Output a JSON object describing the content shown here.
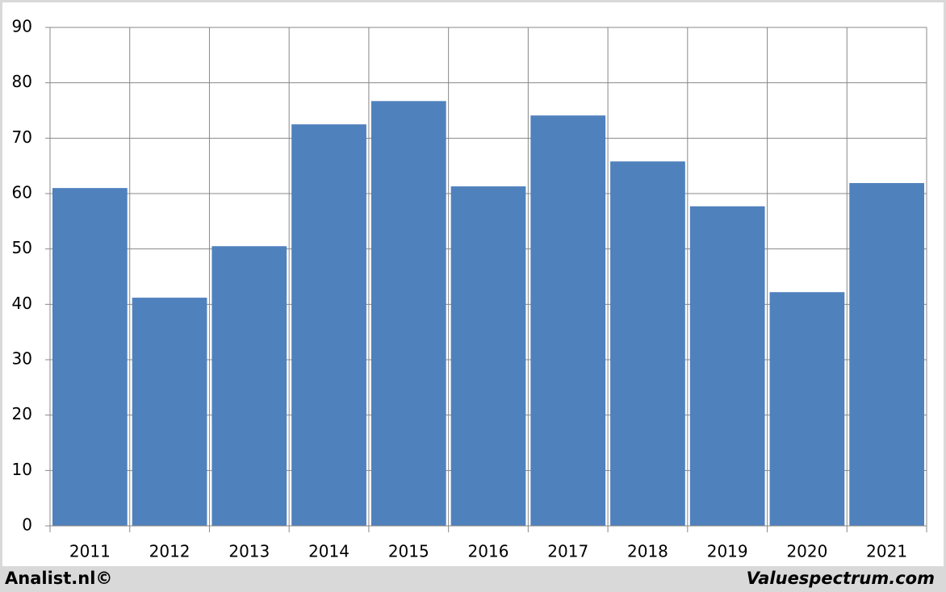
{
  "chart_data": {
    "type": "bar",
    "categories": [
      "2011",
      "2012",
      "2013",
      "2014",
      "2015",
      "2016",
      "2017",
      "2018",
      "2019",
      "2020",
      "2021"
    ],
    "values": [
      61.0,
      41.2,
      50.5,
      72.5,
      76.7,
      61.3,
      74.1,
      65.8,
      57.7,
      42.2,
      61.9
    ],
    "color": "#4f81bd",
    "ylim": [
      0,
      90
    ],
    "yticks": [
      0,
      10,
      20,
      30,
      40,
      50,
      60,
      70,
      80,
      90
    ],
    "grid": true,
    "footer_left": "Analist.nl©",
    "footer_right": "Valuespectrum.com"
  }
}
